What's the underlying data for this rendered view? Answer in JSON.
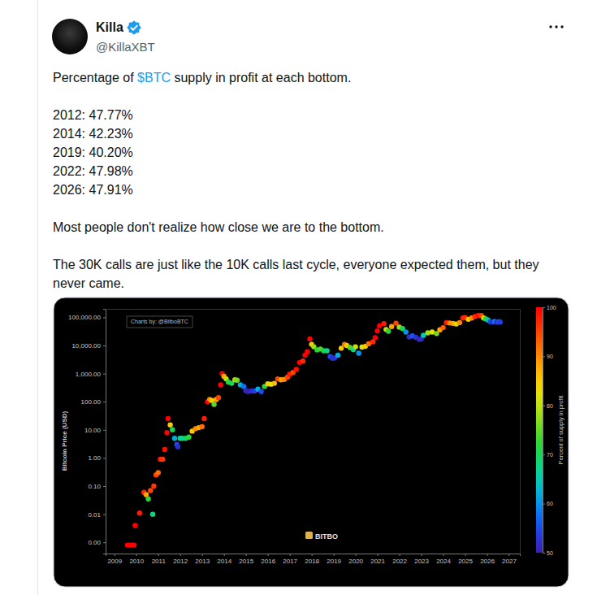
{
  "post": {
    "name": "Killa",
    "handle": "@KillaXBT",
    "intro": [
      {
        "text": "Percentage of "
      },
      {
        "text": "$BTC",
        "color": "#1d9bf0"
      },
      {
        "text": " supply in profit at each bottom."
      }
    ],
    "bottoms": [
      "2012: 47.77%",
      "2014: 42.23%",
      "2019: 40.20%",
      "2022: 47.98%",
      "2026: 47.91%"
    ],
    "paragraphs": [
      "Most people don't realize how close we are to the bottom.",
      "The 30K calls are just like the 10K calls last cycle, everyone expected them, but they never came."
    ]
  },
  "chart_data": {
    "type": "scatter",
    "ylabel": "Bitcoin Price (USD)",
    "credit": "Charts by: @BitboBTC",
    "watermark": "BITBO",
    "log": "y",
    "grid": false,
    "x": [
      2009.6,
      2009.7,
      2009.8,
      2009.9,
      2009.95,
      2010.15,
      2010.35,
      2010.45,
      2010.55,
      2010.65,
      2010.75,
      2010.8,
      2010.9,
      2011.0,
      2011.1,
      2011.2,
      2011.3,
      2011.4,
      2011.45,
      2011.55,
      2011.65,
      2011.75,
      2011.85,
      2011.9,
      2012.0,
      2012.1,
      2012.25,
      2012.4,
      2012.55,
      2012.7,
      2012.85,
      2013.0,
      2013.1,
      2013.25,
      2013.35,
      2013.45,
      2013.55,
      2013.65,
      2013.75,
      2013.85,
      2013.92,
      2014.0,
      2014.1,
      2014.2,
      2014.35,
      2014.5,
      2014.6,
      2014.75,
      2014.9,
      2015.0,
      2015.1,
      2015.25,
      2015.4,
      2015.55,
      2015.7,
      2015.85,
      2016.0,
      2016.15,
      2016.3,
      2016.45,
      2016.6,
      2016.75,
      2016.9,
      2017.0,
      2017.15,
      2017.3,
      2017.45,
      2017.6,
      2017.7,
      2017.8,
      2017.92,
      2018.0,
      2018.1,
      2018.25,
      2018.4,
      2018.55,
      2018.7,
      2018.85,
      2018.95,
      2019.05,
      2019.2,
      2019.35,
      2019.5,
      2019.6,
      2019.75,
      2019.9,
      2020.0,
      2020.15,
      2020.3,
      2020.45,
      2020.6,
      2020.8,
      2020.9,
      2021.0,
      2021.1,
      2021.3,
      2021.4,
      2021.5,
      2021.65,
      2021.85,
      2022.0,
      2022.15,
      2022.3,
      2022.45,
      2022.6,
      2022.75,
      2022.9,
      2023.0,
      2023.1,
      2023.3,
      2023.5,
      2023.7,
      2023.85,
      2024.0,
      2024.15,
      2024.3,
      2024.45,
      2024.6,
      2024.75,
      2024.9,
      2025.0,
      2025.15,
      2025.3,
      2025.45,
      2025.6,
      2025.75,
      2025.85,
      2025.95,
      2026.05,
      2026.15,
      2026.25,
      2026.35,
      2026.45,
      2026.55,
      2026.6
    ],
    "values": [
      0.0008,
      0.0008,
      0.0008,
      0.0008,
      0.004,
      0.011,
      0.06,
      0.05,
      0.035,
      0.07,
      0.01,
      0.1,
      0.25,
      0.3,
      0.9,
      0.9,
      2,
      8,
      25,
      15,
      10,
      5,
      3,
      2.5,
      5,
      5,
      5,
      5.5,
      9,
      11,
      12,
      13,
      25,
      100,
      120,
      110,
      80,
      120,
      140,
      400,
      1000,
      800,
      650,
      500,
      450,
      600,
      580,
      400,
      350,
      250,
      230,
      240,
      240,
      280,
      230,
      350,
      430,
      420,
      450,
      650,
      600,
      620,
      750,
      950,
      1100,
      1400,
      2500,
      2800,
      4500,
      6000,
      17000,
      11000,
      9000,
      7000,
      7500,
      6500,
      6500,
      4000,
      3500,
      3600,
      4500,
      8000,
      11000,
      10000,
      8500,
      7200,
      9000,
      5300,
      8800,
      9300,
      11500,
      13500,
      19000,
      33000,
      50000,
      60000,
      37000,
      32000,
      47000,
      62000,
      45000,
      40000,
      30000,
      20000,
      22000,
      19500,
      16500,
      17000,
      23000,
      28000,
      30000,
      26500,
      36000,
      43000,
      65000,
      63000,
      61000,
      58000,
      65000,
      95000,
      98000,
      85000,
      95000,
      107000,
      118000,
      115000,
      95000,
      88000,
      80000,
      70000,
      68000,
      72000,
      67000,
      70000,
      68000
    ],
    "profit": [
      100,
      100,
      100,
      100,
      100,
      98,
      97,
      88,
      72,
      95,
      68,
      96,
      95,
      92,
      98,
      96,
      99,
      100,
      100,
      85,
      70,
      62,
      55,
      52,
      68,
      66,
      70,
      72,
      85,
      90,
      88,
      92,
      98,
      100,
      90,
      85,
      75,
      88,
      95,
      100,
      100,
      88,
      80,
      72,
      70,
      78,
      76,
      62,
      58,
      52,
      50,
      52,
      54,
      62,
      55,
      72,
      85,
      82,
      86,
      95,
      88,
      90,
      95,
      98,
      95,
      99,
      100,
      97,
      100,
      100,
      100,
      85,
      78,
      72,
      74,
      70,
      68,
      55,
      52,
      53,
      62,
      85,
      92,
      85,
      75,
      68,
      80,
      60,
      82,
      85,
      92,
      97,
      100,
      100,
      100,
      98,
      80,
      72,
      88,
      95,
      78,
      70,
      60,
      52,
      56,
      53,
      50,
      52,
      65,
      78,
      82,
      76,
      88,
      93,
      98,
      90,
      88,
      82,
      90,
      98,
      97,
      85,
      90,
      97,
      99,
      95,
      80,
      72,
      65,
      55,
      52,
      58,
      52,
      56,
      54
    ],
    "xlim": [
      2008.6,
      2027.5
    ],
    "xticks": [
      2009,
      2010,
      2011,
      2012,
      2013,
      2014,
      2015,
      2016,
      2017,
      2018,
      2019,
      2020,
      2021,
      2022,
      2023,
      2024,
      2025,
      2026,
      2027
    ],
    "ylim": [
      0.0004,
      200000
    ],
    "yticks": [
      {
        "value": 0.001,
        "label": "0.00"
      },
      {
        "value": 0.01,
        "label": "0.01"
      },
      {
        "value": 0.1,
        "label": "0.10"
      },
      {
        "value": 1,
        "label": "1.00"
      },
      {
        "value": 10,
        "label": "10.00"
      },
      {
        "value": 100,
        "label": "100.00"
      },
      {
        "value": 1000,
        "label": "1,000.00"
      },
      {
        "value": 10000,
        "label": "10,000.00"
      },
      {
        "value": 100000,
        "label": "100,000.00"
      }
    ],
    "colorbar": {
      "title": "Percent of supply in profit",
      "range": [
        50,
        100
      ],
      "ticks": [
        50,
        60,
        70,
        80,
        90,
        100
      ]
    }
  }
}
